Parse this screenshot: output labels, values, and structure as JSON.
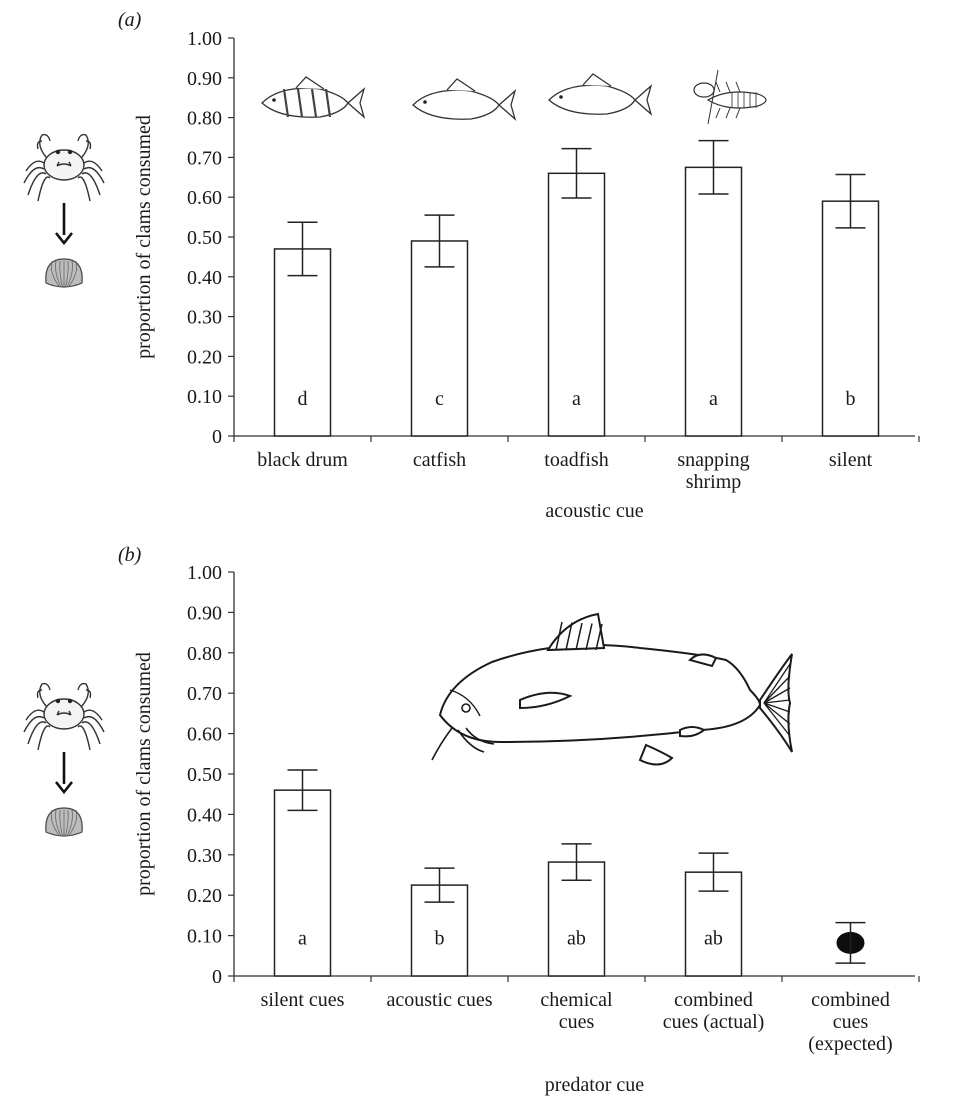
{
  "chart_data": [
    {
      "panel_label": "(a)",
      "type": "bar",
      "ylabel": "proportion of clams consumed",
      "xlabel": "acoustic cue",
      "ylim": [
        0,
        1.0
      ],
      "yticks": [
        "0",
        "0.10",
        "0.20",
        "0.30",
        "0.40",
        "0.50",
        "0.60",
        "0.70",
        "0.80",
        "0.90",
        "1.00"
      ],
      "categories": [
        [
          "black drum"
        ],
        [
          "catfish"
        ],
        [
          "toadfish"
        ],
        [
          "snapping",
          "shrimp"
        ],
        [
          "silent"
        ]
      ],
      "values": [
        0.47,
        0.49,
        0.66,
        0.675,
        0.59
      ],
      "errors": [
        0.067,
        0.065,
        0.062,
        0.067,
        0.067
      ],
      "letters": [
        "d",
        "c",
        "a",
        "a",
        "b"
      ],
      "icons": [
        "black-drum-fish-icon",
        "catfish-icon",
        "toadfish-icon",
        "snapping-shrimp-icon"
      ],
      "side_icons": [
        "crab-icon",
        "down-arrow-icon",
        "clam-icon"
      ],
      "grid": false
    },
    {
      "panel_label": "(b)",
      "type": "bar",
      "ylabel": "proportion of clams consumed",
      "xlabel": "predator cue",
      "ylim": [
        0,
        1.0
      ],
      "yticks": [
        "0",
        "0.10",
        "0.20",
        "0.30",
        "0.40",
        "0.50",
        "0.60",
        "0.70",
        "0.80",
        "0.90",
        "1.00"
      ],
      "categories": [
        [
          "silent cues"
        ],
        [
          "acoustic cues"
        ],
        [
          "chemical",
          "cues"
        ],
        [
          "combined",
          "cues (actual)"
        ],
        [
          "combined",
          "cues",
          "(expected)"
        ]
      ],
      "values": [
        0.46,
        0.225,
        0.282,
        0.257,
        0.082
      ],
      "errors": [
        0.05,
        0.042,
        0.045,
        0.047,
        0.05
      ],
      "letters": [
        "a",
        "b",
        "ab",
        "ab",
        ""
      ],
      "marks": [
        "bar",
        "bar",
        "bar",
        "bar",
        "point"
      ],
      "icons": [
        "catfish-icon"
      ],
      "side_icons": [
        "crab-icon",
        "down-arrow-icon",
        "clam-icon"
      ],
      "grid": false
    }
  ]
}
